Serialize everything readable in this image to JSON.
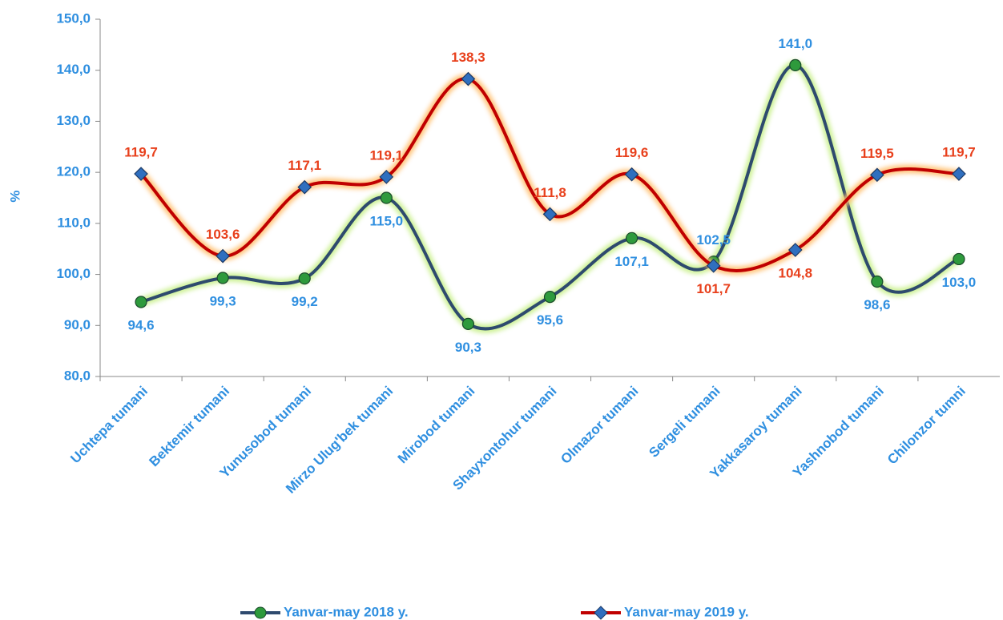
{
  "chart_data": {
    "type": "line",
    "y_label": "%",
    "categories": [
      "Uchtepa tumani",
      "Bektemir tumani",
      "Yunusobod tumani",
      "Mirzo Ulug'bek tumani",
      "Mirobod tumani",
      "Shayxontohur tumani",
      "Olmazor tumani",
      "Sergeli tumani",
      "Yakkasaroy tumani",
      "Yashnobod tumani",
      "Chilonzor tumni"
    ],
    "series": [
      {
        "name": "Yanvar-may 2018 y.",
        "color": "#2e4a6e",
        "marker": "circle",
        "marker_color": "#2e9a3c",
        "label_color": "#2f8fe0",
        "glow": "#c8f08a",
        "values": [
          94.6,
          99.3,
          99.2,
          115.0,
          90.3,
          95.6,
          107.1,
          102.5,
          141.0,
          98.6,
          103.0
        ],
        "value_labels": [
          "94,6",
          "99,3",
          "99,2",
          "115,0",
          "90,3",
          "95,6",
          "107,1",
          "102,5",
          "141,0",
          "98,6",
          "103,0"
        ]
      },
      {
        "name": "Yanvar-may 2019 y.",
        "color": "#c00000",
        "marker": "diamond",
        "marker_color": "#2f6fbf",
        "label_color": "#e8401c",
        "glow": "#ffc070",
        "values": [
          119.7,
          103.6,
          117.1,
          119.1,
          138.3,
          111.8,
          119.6,
          101.7,
          104.8,
          119.5,
          119.7
        ],
        "value_labels": [
          "119,7",
          "103,6",
          "117,1",
          "119,1",
          "138,3",
          "111,8",
          "119,6",
          "101,7",
          "104,8",
          "119,5",
          "119,7"
        ]
      }
    ],
    "ylim": [
      80,
      150
    ],
    "yticks": [
      {
        "value": 80,
        "label": "80,0"
      },
      {
        "value": 90,
        "label": "90,0"
      },
      {
        "value": 100,
        "label": "100,0"
      },
      {
        "value": 110,
        "label": "110,0"
      },
      {
        "value": 120,
        "label": "120,0"
      },
      {
        "value": 130,
        "label": "130,0"
      },
      {
        "value": 140,
        "label": "140,0"
      },
      {
        "value": 150,
        "label": "150,0"
      }
    ],
    "legend": "bottom"
  }
}
